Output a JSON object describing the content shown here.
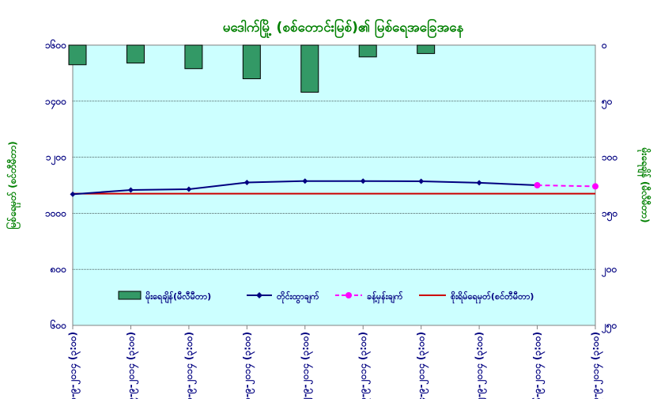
{
  "colors": {
    "plot_bg": "#ccffff",
    "bar_fill": "#339966",
    "title_color": "#008000",
    "tick_color": "#000080",
    "observed_line": "#000080",
    "forecast_line": "#ff00ff",
    "danger_line": "#cc0000"
  },
  "chart_data": {
    "type": "bar+line",
    "title": "မဒေါက်မြို့ (စစ်တောင်းမြစ်)၏ မြစ်ရေအခြေအနေ",
    "ylabel_left": "မြစ်ရေမှတ် (စင်တီမီတာ)",
    "ylabel_right": "မိုးရေချိန် (မီလီမီတာ)",
    "ylim_left": [
      600,
      1600
    ],
    "yticks_left": [
      "၆၀၀",
      "၈၀၀",
      "၁၀၀၀",
      "၁၂၀၀",
      "၁၄၀၀",
      "၁၆၀၀"
    ],
    "ylim_right": [
      0,
      500
    ],
    "right_inverted": true,
    "yticks_right": [
      "၀",
      "၅၀",
      "၁၀၀",
      "၁၅၀",
      "၂၀၀",
      "၂၅၀"
    ],
    "grid": true,
    "legend_position": "bottom-center",
    "x": [
      "၈-၉-၂၀၁၄ (၃:၀၀)",
      "၉-၉-၂၀၁၄ (၃:၀၀)",
      "၁၀-၉-၂၀၁၄ (၃:၀၀)",
      "၁၁-၉-၂၀၁၄ (၃:၀၀)",
      "၁၂-၉-၂၀၁၄ (၃:၀၀)",
      "၁၃-၉-၂၀၁၄ (၃:၀၀)",
      "၁၄-၉-၂၀၁၄ (၃:၀၀)",
      "၁၅-၉-၂၀၁၄ (၃:၀၀)",
      "၁၆-၉-၂၀၁၄ (၃:၀၀)",
      "၁၇-၉-၂၀၁၄ (၃:၀၀)"
    ],
    "series": [
      {
        "name": "မိုးရေချိန်(မီလီမီတာ)",
        "type": "bar",
        "axis": "right",
        "values": [
          35,
          32,
          42,
          60,
          84,
          21,
          15,
          null,
          null,
          null
        ]
      },
      {
        "name": "တိုင်းထွာချက်",
        "type": "line",
        "axis": "left",
        "values": [
          1068,
          1083,
          1086,
          1110,
          1115,
          1115,
          1114,
          1109,
          1100,
          null
        ]
      },
      {
        "name": "ခန့်မှန်းချက်",
        "type": "line",
        "dash": true,
        "axis": "left",
        "values": [
          null,
          null,
          null,
          null,
          null,
          null,
          null,
          null,
          1100,
          1096
        ]
      },
      {
        "name": "စိုးရိမ်ရေမှတ်(စင်တီမီတာ)",
        "type": "hline",
        "axis": "left",
        "value": 1070
      }
    ]
  }
}
